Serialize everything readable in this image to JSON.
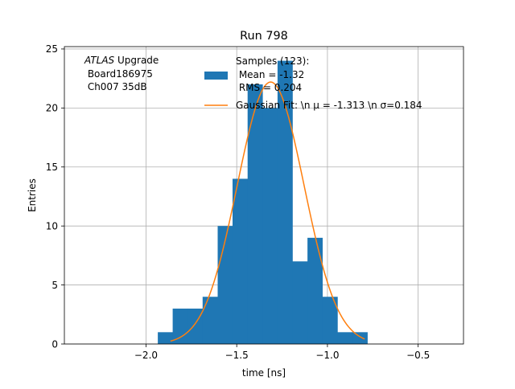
{
  "chart_data": {
    "type": "bar",
    "title": "Run 798",
    "xlabel": "time [ns]",
    "ylabel": "Entries",
    "xlim": [
      -2.45,
      -0.25
    ],
    "ylim": [
      0,
      25.2
    ],
    "grid": true,
    "xticks": [
      {
        "value": -2.0,
        "label": "−2.0"
      },
      {
        "value": -1.5,
        "label": "−1.5"
      },
      {
        "value": -1.0,
        "label": "−1.0"
      },
      {
        "value": -0.5,
        "label": "−0.5"
      }
    ],
    "yticks": [
      {
        "value": 0,
        "label": "0"
      },
      {
        "value": 5,
        "label": "5"
      },
      {
        "value": 10,
        "label": "10"
      },
      {
        "value": 15,
        "label": "15"
      },
      {
        "value": 20,
        "label": "20"
      },
      {
        "value": 25,
        "label": "25"
      }
    ],
    "histogram": {
      "name": "Samples (123):\n Mean = -1.32\n RMS = 0.204",
      "color": "#1f77b4",
      "bin_edges": [
        -1.935,
        -1.853,
        -1.77,
        -1.688,
        -1.605,
        -1.523,
        -1.44,
        -1.358,
        -1.275,
        -1.193,
        -1.11,
        -1.028,
        -0.945,
        -0.863,
        -0.78,
        -0.698
      ],
      "counts": [
        1,
        3,
        3,
        4,
        10,
        14,
        22,
        20,
        24,
        7,
        9,
        4,
        1,
        1,
        0
      ]
    },
    "fit": {
      "name": "Gaussian Fit: \\n $\\mu$ = -1.313 \\n $\\sigma$=0.184",
      "color": "#ff7f0e",
      "type": "gaussian",
      "mu": -1.313,
      "sigma": 0.184,
      "amplitude": 22.2,
      "x_range": [
        -1.865,
        -0.795
      ]
    },
    "legend_position": "upper-right",
    "legend": {
      "samples_lines": [
        "Samples (123):",
        " Mean = -1.32",
        " RMS = 0.204"
      ],
      "fit_label": "Gaussian Fit: \\n μ = -1.313 \\n σ=0.184"
    },
    "annotation": {
      "experiment": "ATLAS",
      "experiment_suffix": " Upgrade",
      "line2": " Board186975",
      "line3": " Ch007 35dB"
    }
  }
}
